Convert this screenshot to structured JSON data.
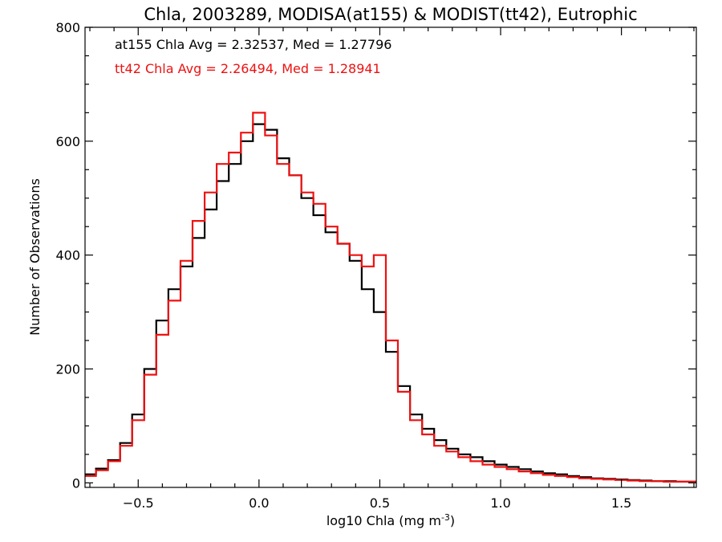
{
  "chart_data": {
    "type": "line",
    "title": "Chla, 2003289, MODISA(at155) & MODIST(tt42), Eutrophic",
    "xlabel": "log10 Chla (mg m",
    "xlabel_sup": "-3",
    "xlabel_close": ")",
    "ylabel": "Number of Observations",
    "xlim": [
      -0.72,
      1.81
    ],
    "ylim": [
      -8,
      800
    ],
    "grid": false,
    "xticks": [
      -0.5,
      0.0,
      0.5,
      1.0,
      1.5
    ],
    "xtick_labels": [
      "−0.5",
      "0.0",
      "0.5",
      "1.0",
      "1.5"
    ],
    "yticks": [
      0,
      200,
      400,
      600,
      800
    ],
    "ytick_labels": [
      "0",
      "200",
      "400",
      "600",
      "800"
    ],
    "annotations": [
      {
        "text": "at155 Chla Avg = 2.32537, Med = 1.27796",
        "color": "#000000"
      },
      {
        "text": "tt42 Chla Avg = 2.26494, Med = 1.28941",
        "color": "#ee1111"
      }
    ],
    "series": [
      {
        "color": "#000000",
        "x": [
          -0.7,
          -0.65,
          -0.6,
          -0.55,
          -0.5,
          -0.45,
          -0.4,
          -0.35,
          -0.3,
          -0.25,
          -0.2,
          -0.15,
          -0.1,
          -0.05,
          0.0,
          0.05,
          0.1,
          0.15,
          0.2,
          0.25,
          0.3,
          0.35,
          0.4,
          0.45,
          0.5,
          0.55,
          0.6,
          0.65,
          0.7,
          0.75,
          0.8,
          0.85,
          0.9,
          0.95,
          1.0,
          1.05,
          1.1,
          1.15,
          1.2,
          1.25,
          1.3,
          1.35,
          1.4,
          1.45,
          1.5,
          1.55,
          1.6,
          1.65,
          1.7,
          1.75,
          1.8
        ],
        "y": [
          15,
          25,
          40,
          70,
          120,
          200,
          285,
          340,
          380,
          430,
          480,
          530,
          560,
          600,
          630,
          620,
          570,
          540,
          500,
          470,
          440,
          420,
          390,
          340,
          300,
          230,
          170,
          120,
          95,
          75,
          60,
          50,
          45,
          38,
          32,
          28,
          24,
          20,
          17,
          15,
          12,
          10,
          8,
          7,
          6,
          5,
          4,
          3,
          3,
          2,
          2
        ]
      },
      {
        "color": "#ee1111",
        "x": [
          -0.7,
          -0.65,
          -0.6,
          -0.55,
          -0.5,
          -0.45,
          -0.4,
          -0.35,
          -0.3,
          -0.25,
          -0.2,
          -0.15,
          -0.1,
          -0.05,
          0.0,
          0.05,
          0.1,
          0.15,
          0.2,
          0.25,
          0.3,
          0.35,
          0.4,
          0.45,
          0.5,
          0.55,
          0.6,
          0.65,
          0.7,
          0.75,
          0.8,
          0.85,
          0.9,
          0.95,
          1.0,
          1.05,
          1.1,
          1.15,
          1.2,
          1.25,
          1.3,
          1.35,
          1.4,
          1.45,
          1.5,
          1.55,
          1.6,
          1.65,
          1.7,
          1.75,
          1.8
        ],
        "y": [
          12,
          22,
          38,
          65,
          110,
          190,
          260,
          320,
          390,
          460,
          510,
          560,
          580,
          615,
          650,
          610,
          560,
          540,
          510,
          490,
          450,
          420,
          400,
          380,
          400,
          250,
          160,
          110,
          85,
          65,
          55,
          45,
          38,
          32,
          28,
          24,
          20,
          17,
          14,
          12,
          10,
          8,
          7,
          6,
          5,
          4,
          3,
          3,
          2,
          2,
          2
        ]
      }
    ]
  }
}
